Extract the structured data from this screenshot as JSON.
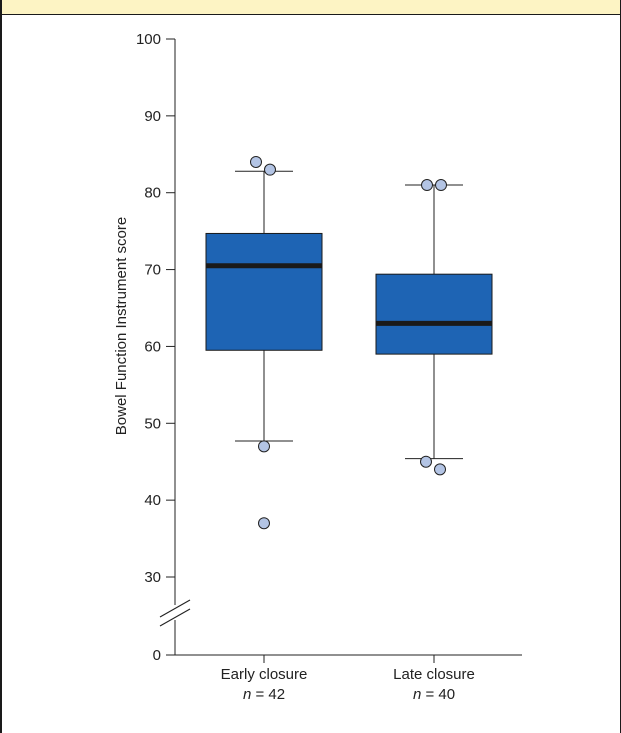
{
  "chart_data": {
    "type": "box",
    "ylabel": "Bowel Function Instrument score",
    "y_ticks": [
      0,
      30,
      40,
      50,
      60,
      70,
      80,
      90,
      100
    ],
    "y_axis_break": "between 0 and 30",
    "groups": [
      {
        "label": "Early closure",
        "n_label": "n",
        "n_value": "42",
        "whisker_low": 47.7,
        "q1": 59.5,
        "median": 70.5,
        "q3": 74.7,
        "whisker_high": 82.8,
        "outliers": [
          84,
          83,
          47,
          37
        ]
      },
      {
        "label": "Late closure",
        "n_label": "n",
        "n_value": "40",
        "whisker_low": 45.4,
        "q1": 59.0,
        "median": 63.0,
        "q3": 69.4,
        "whisker_high": 81.0,
        "outliers": [
          81,
          81,
          45,
          44
        ]
      }
    ]
  },
  "colors": {
    "box_fill": "#1e64b4",
    "median": "#1a1a1a",
    "outlier_fill": "#b3c4e4",
    "outlier_stroke": "#222222",
    "header_band": "#fdf4c4"
  }
}
